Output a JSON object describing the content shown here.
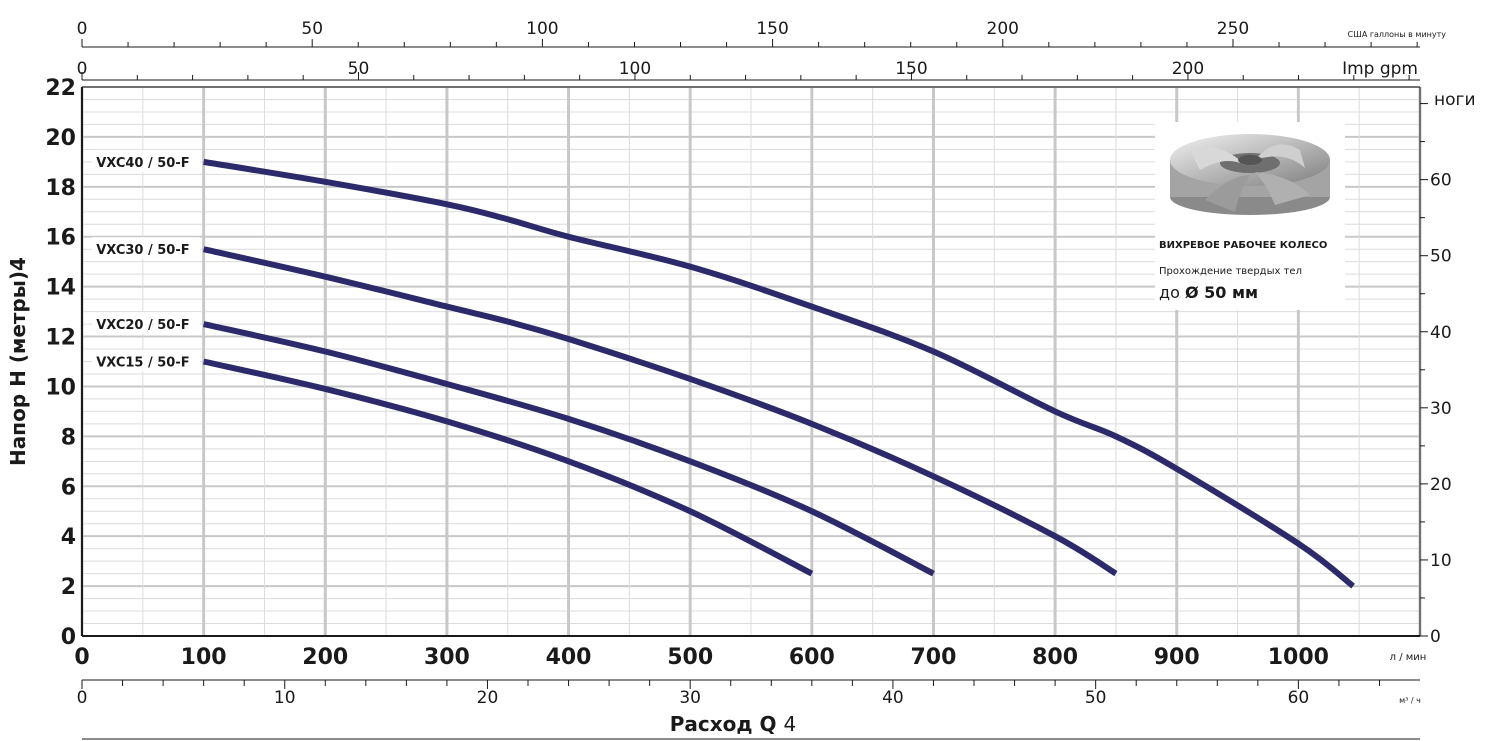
{
  "colors": {
    "curve": "#2d2a6b",
    "grid_major": "#c8c8c8",
    "grid_minor": "#dcdcdc",
    "axis": "#1a1a1a"
  },
  "chart_data": {
    "type": "line",
    "x_unit_label": "л / мин",
    "xlabel": "Расход Q",
    "xlabel_suffix": "4",
    "ylabel": "Напор H (метры)4",
    "xlim": [
      0,
      1100
    ],
    "ylim": [
      0,
      22
    ],
    "x_ticks": [
      "0",
      "100",
      "200",
      "300",
      "400",
      "500",
      "600",
      "700",
      "800",
      "900",
      "1000"
    ],
    "y_ticks": [
      "0",
      "2",
      "4",
      "6",
      "8",
      "10",
      "12",
      "14",
      "16",
      "18",
      "20",
      "22"
    ],
    "grid": true,
    "secondary_axes": {
      "us_gpm": {
        "label": "США галлоны в минуту",
        "ticks": [
          "0",
          "50",
          "100",
          "150",
          "200",
          "250"
        ],
        "values": [
          0,
          50,
          100,
          150,
          200,
          250
        ],
        "lpm_per_unit": 3.785
      },
      "imp_gpm": {
        "label": "Imp gpm",
        "ticks": [
          "0",
          "50",
          "100",
          "150",
          "200"
        ],
        "values": [
          0,
          50,
          100,
          150,
          200
        ],
        "lpm_per_unit": 4.546
      },
      "m3h": {
        "label": "м³ / ч",
        "ticks": [
          "0",
          "10",
          "20",
          "30",
          "40",
          "50",
          "60"
        ],
        "values": [
          0,
          10,
          20,
          30,
          40,
          50,
          60
        ],
        "lpm_per_unit": 16.667
      },
      "feet": {
        "label": "ноги",
        "ticks": [
          "0",
          "10",
          "20",
          "30",
          "40",
          "50",
          "60"
        ],
        "values": [
          0,
          10,
          20,
          30,
          40,
          50,
          60
        ],
        "m_per_unit": 0.3048
      }
    },
    "series": [
      {
        "name": "VXC40 / 50-F",
        "x": [
          100,
          200,
          300,
          350,
          400,
          500,
          600,
          700,
          800,
          850,
          900,
          1000,
          1045
        ],
        "y": [
          19.0,
          18.2,
          17.3,
          16.7,
          16.0,
          14.8,
          13.2,
          11.4,
          9.0,
          8.0,
          6.7,
          3.7,
          2.0
        ]
      },
      {
        "name": "VXC30 / 50-F",
        "x": [
          100,
          200,
          300,
          350,
          400,
          500,
          600,
          700,
          800,
          850
        ],
        "y": [
          15.5,
          14.4,
          13.2,
          12.6,
          11.9,
          10.3,
          8.5,
          6.4,
          4.0,
          2.5
        ]
      },
      {
        "name": "VXC20 / 50-F",
        "x": [
          100,
          200,
          300,
          400,
          500,
          600,
          700
        ],
        "y": [
          12.5,
          11.4,
          10.1,
          8.7,
          7.0,
          5.0,
          2.5
        ]
      },
      {
        "name": "VXC15 / 50-F",
        "x": [
          100,
          200,
          300,
          400,
          500,
          600
        ],
        "y": [
          11.0,
          9.9,
          8.6,
          7.0,
          5.0,
          2.5
        ]
      }
    ],
    "legend": "inline-left"
  },
  "info_box": {
    "image_icon": "vortex-impeller-icon",
    "title": "ВИХРЕВОЕ РАБОЧЕЕ КОЛЕСО",
    "subtitle": "Прохождение твердых тел",
    "value_prefix": "до ",
    "value": "Ø 50 мм"
  }
}
